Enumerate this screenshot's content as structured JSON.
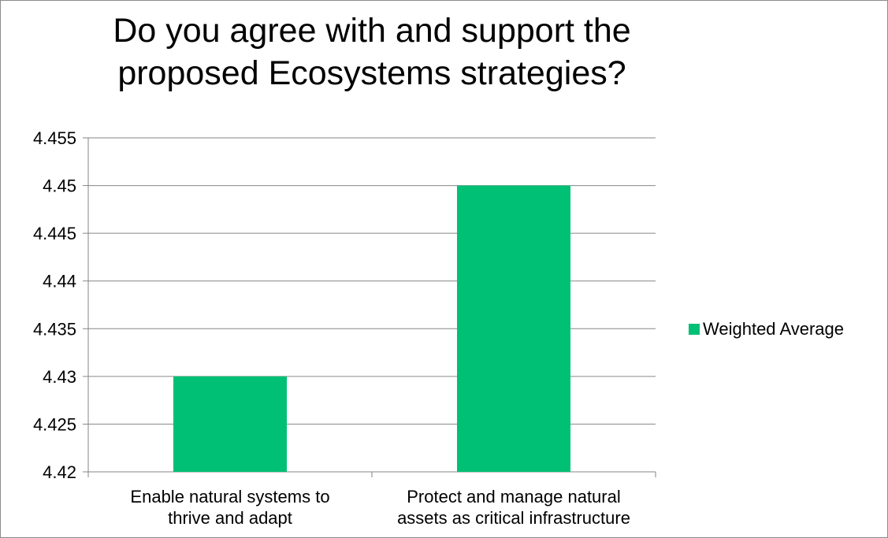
{
  "chart_data": {
    "type": "bar",
    "title_lines": [
      "Do you agree with and support the",
      "proposed Ecosystems strategies?"
    ],
    "categories": [
      [
        "Enable natural systems to",
        "thrive and adapt"
      ],
      [
        "Protect and manage natural",
        "assets as critical infrastructure"
      ]
    ],
    "series": [
      {
        "name": "Weighted Average",
        "values": [
          4.43,
          4.45
        ],
        "color": "#00c075"
      }
    ],
    "ylim": [
      4.42,
      4.455
    ],
    "yticks": [
      4.42,
      4.425,
      4.43,
      4.435,
      4.44,
      4.445,
      4.45,
      4.455
    ],
    "ytick_labels": [
      "4.42",
      "4.425",
      "4.43",
      "4.435",
      "4.44",
      "4.445",
      "4.45",
      "4.455"
    ],
    "grid": true,
    "legend_position": "right"
  }
}
